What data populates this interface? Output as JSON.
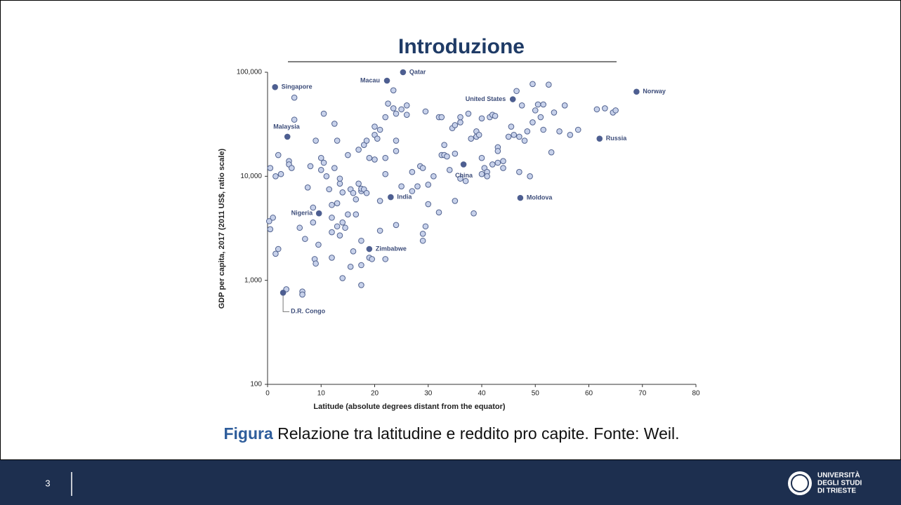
{
  "slide": {
    "title": "Introduzione",
    "caption_bold": "Figura",
    "caption": " Relazione tra latitudine e reddito pro capite. Fonte: Weil.",
    "page_number": "3",
    "logo": [
      "UNIVERSITÀ",
      "DEGLI STUDI",
      "DI TRIESTE"
    ]
  },
  "chart_data": {
    "type": "scatter",
    "x_label": "Latitude (absolute degrees distant from the equator)",
    "y_label": "GDP per capita, 2017 (2011 US$, ratio scale)",
    "xlim": [
      0,
      80
    ],
    "ylim": [
      100,
      100000
    ],
    "log_y": true,
    "xticks": [
      0,
      10,
      20,
      30,
      40,
      50,
      60,
      70,
      80
    ],
    "yticks": [
      100,
      {
        "value": 1000,
        "label": "1,000"
      },
      {
        "value": 10000,
        "label": "10,000"
      },
      {
        "value": 100000,
        "label": "100,000"
      }
    ],
    "color": "#c7d1ea",
    "edge_color": "#51628f",
    "highlight_color": "#4d5e92",
    "x": [
      0.5,
      1,
      0.3,
      0.5,
      1.5,
      2,
      1.5,
      2,
      2.5,
      3.5,
      4,
      4,
      4.5,
      5,
      5,
      6,
      7,
      6.5,
      6.5,
      7.5,
      8,
      8.5,
      8.5,
      8.8,
      9,
      9,
      9.5,
      10,
      10,
      10.5,
      10.5,
      11,
      11.5,
      12,
      12,
      12,
      12,
      12.5,
      12.5,
      13,
      13,
      13,
      13.5,
      13.5,
      13.5,
      14,
      14,
      14.5,
      14,
      15,
      15,
      15.5,
      15.5,
      16,
      16,
      16.5,
      16.5,
      17,
      17,
      17.5,
      17.5,
      17.5,
      17.5,
      17.5,
      18,
      18,
      18.5,
      18.5,
      19,
      19,
      19.5,
      20,
      20,
      20,
      20.5,
      21,
      21,
      21,
      22,
      22,
      22,
      22,
      22.5,
      23.5,
      23.5,
      24,
      24,
      24,
      24,
      25,
      25,
      26,
      26,
      27,
      27,
      28,
      28.5,
      29,
      29,
      29,
      29.5,
      29.5,
      30,
      30,
      31,
      32,
      32,
      32.5,
      32.5,
      33,
      33,
      33.5,
      34,
      34.5,
      35,
      35,
      35,
      36,
      36,
      36,
      37,
      37.5,
      38,
      38.5,
      39,
      39,
      39.5,
      40,
      40,
      40,
      40.5,
      41,
      41,
      41.5,
      42,
      42,
      42.5,
      43,
      43,
      43,
      44,
      44,
      45,
      45.5,
      46,
      46.5,
      47,
      47,
      47.5,
      48,
      48.5,
      49,
      49.5,
      49.5,
      50,
      50.5,
      51,
      51.5,
      51.5,
      52.5,
      53,
      53.5,
      54.5,
      55.5,
      56.5,
      58,
      61.5,
      63,
      64.5,
      65
    ],
    "y": [
      12000,
      4000,
      3700,
      3100,
      1800,
      2000,
      10000,
      16000,
      10500,
      820,
      14000,
      13000,
      12000,
      57000,
      35000,
      3200,
      2500,
      780,
      730,
      7800,
      12500,
      5000,
      3600,
      1600,
      1450,
      22000,
      2200,
      11500,
      15000,
      40000,
      13500,
      10000,
      7500,
      4000,
      5300,
      2900,
      1650,
      12000,
      32000,
      22000,
      5500,
      3300,
      2700,
      8500,
      9500,
      7000,
      3600,
      3200,
      1050,
      4300,
      16000,
      7500,
      1350,
      6900,
      1900,
      4300,
      6000,
      18000,
      8500,
      7200,
      7600,
      2400,
      1400,
      900,
      20000,
      7500,
      22000,
      6900,
      15000,
      1650,
      1600,
      14500,
      25000,
      30000,
      23000,
      3000,
      28000,
      5800,
      37000,
      15000,
      1600,
      10500,
      50000,
      45000,
      67000,
      40000,
      22000,
      3400,
      17500,
      44000,
      8000,
      48000,
      39000,
      7200,
      11000,
      8000,
      12500,
      12000,
      2800,
      2400,
      3300,
      42000,
      8300,
      5400,
      10000,
      37000,
      4500,
      37000,
      16000,
      20000,
      16000,
      15500,
      11500,
      29000,
      31000,
      16500,
      5800,
      33000,
      37000,
      9500,
      9000,
      40000,
      23000,
      4400,
      27000,
      24000,
      25000,
      36000,
      10500,
      15000,
      12000,
      11000,
      10000,
      37000,
      39000,
      13000,
      38000,
      19000,
      17500,
      13500,
      14000,
      12000,
      24000,
      30000,
      25000,
      66000,
      11000,
      24000,
      48000,
      22000,
      27000,
      10000,
      33000,
      77000,
      43000,
      49000,
      37000,
      28000,
      49000,
      76000,
      17000,
      41000,
      27000,
      48000,
      25000,
      28000,
      44000,
      45000,
      41000,
      43000
    ],
    "annotations": [
      {
        "label": "Singapore",
        "x": 1.4,
        "y": 72000
      },
      {
        "label": "Malaysia",
        "x": 3.7,
        "y": 24000
      },
      {
        "label": "Macau",
        "x": 22.3,
        "y": 83000
      },
      {
        "label": "Qatar",
        "x": 25.3,
        "y": 100000
      },
      {
        "label": "United States",
        "x": 45.8,
        "y": 55000
      },
      {
        "label": "Norway",
        "x": 68.9,
        "y": 65000
      },
      {
        "label": "Russia",
        "x": 62,
        "y": 23000
      },
      {
        "label": "China",
        "x": 36.6,
        "y": 13000
      },
      {
        "label": "India",
        "x": 23,
        "y": 6300
      },
      {
        "label": "Moldova",
        "x": 47.2,
        "y": 6200
      },
      {
        "label": "Nigeria",
        "x": 9.6,
        "y": 4400
      },
      {
        "label": "Zimbabwe",
        "x": 19,
        "y": 2000
      },
      {
        "label": "D.R. Congo",
        "x": 2.9,
        "y": 760
      }
    ]
  }
}
